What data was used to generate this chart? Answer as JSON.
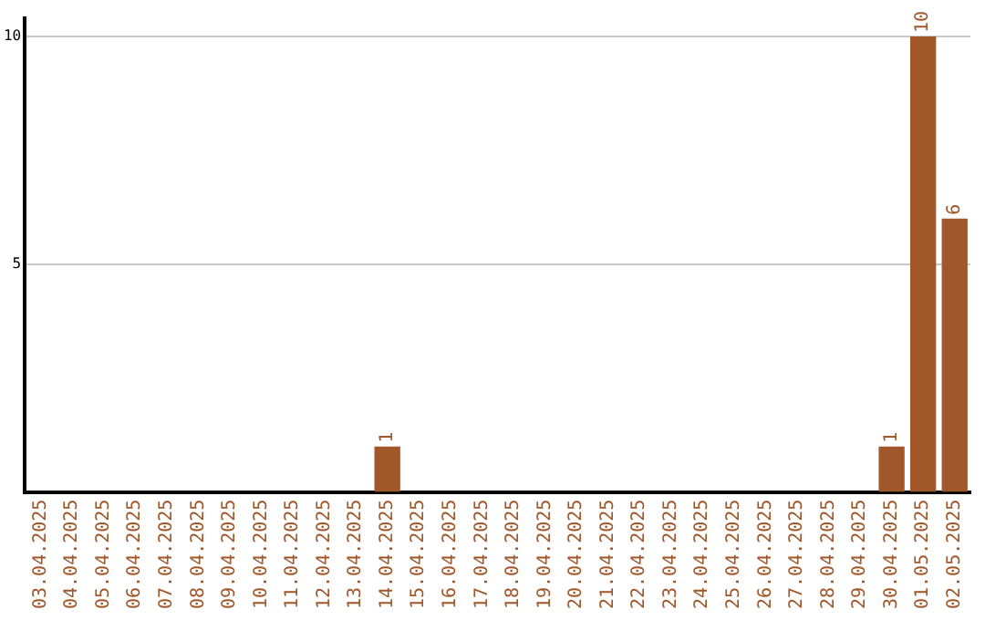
{
  "chart_data": {
    "type": "bar",
    "categories": [
      "03.04.2025",
      "04.04.2025",
      "05.04.2025",
      "06.04.2025",
      "07.04.2025",
      "08.04.2025",
      "09.04.2025",
      "10.04.2025",
      "11.04.2025",
      "12.04.2025",
      "13.04.2025",
      "14.04.2025",
      "15.04.2025",
      "16.04.2025",
      "17.04.2025",
      "18.04.2025",
      "19.04.2025",
      "20.04.2025",
      "21.04.2025",
      "22.04.2025",
      "23.04.2025",
      "24.04.2025",
      "25.04.2025",
      "26.04.2025",
      "27.04.2025",
      "28.04.2025",
      "29.04.2025",
      "30.04.2025",
      "01.05.2025",
      "02.05.2025"
    ],
    "values": [
      0,
      0,
      0,
      0,
      0,
      0,
      0,
      0,
      0,
      0,
      0,
      1,
      0,
      0,
      0,
      0,
      0,
      0,
      0,
      0,
      0,
      0,
      0,
      0,
      0,
      0,
      0,
      1,
      10,
      6
    ],
    "value_labels": [
      null,
      null,
      null,
      null,
      null,
      null,
      null,
      null,
      null,
      null,
      null,
      "1",
      null,
      null,
      null,
      null,
      null,
      null,
      null,
      null,
      null,
      null,
      null,
      null,
      null,
      null,
      null,
      "1",
      "10",
      "6"
    ],
    "color": "#a0572a",
    "ylim": [
      0,
      10.4
    ],
    "yticks": [
      5,
      10
    ],
    "grid": "y",
    "legend": false
  }
}
